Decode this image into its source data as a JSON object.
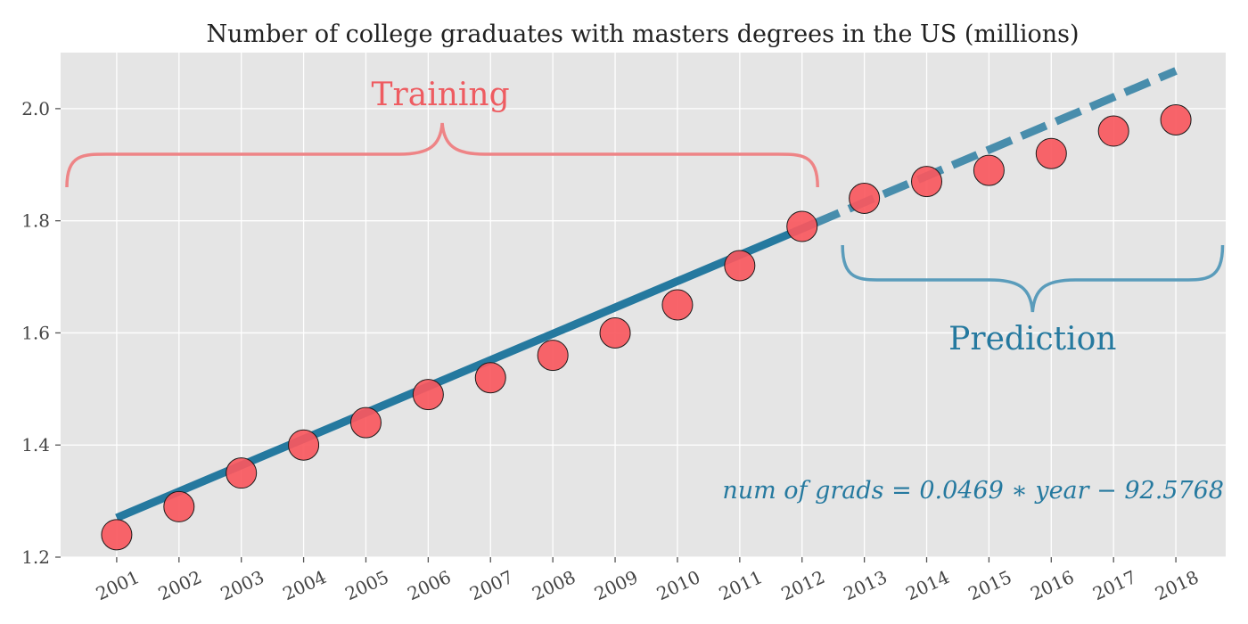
{
  "chart_data": {
    "type": "scatter",
    "title": "Number of college graduates with masters degrees in the US (millions)",
    "xlabel": "",
    "ylabel": "",
    "x": [
      2001,
      2002,
      2003,
      2004,
      2005,
      2006,
      2007,
      2008,
      2009,
      2010,
      2011,
      2012,
      2013,
      2014,
      2015,
      2016,
      2017,
      2018
    ],
    "x_tick_labels": [
      "2001",
      "2002",
      "2003",
      "2004",
      "2005",
      "2006",
      "2007",
      "2008",
      "2009",
      "2010",
      "2011",
      "2012",
      "2013",
      "2014",
      "2015",
      "2016",
      "2017",
      "2018"
    ],
    "y_ticks": [
      1.2,
      1.4,
      1.6,
      1.8,
      2.0
    ],
    "y_tick_labels": [
      "1.2",
      "1.4",
      "1.6",
      "1.8",
      "2.0"
    ],
    "ylim": [
      1.2,
      2.1
    ],
    "xlim": [
      2000.1,
      2018.8
    ],
    "grid": true,
    "series": [
      {
        "values": [
          1.24,
          1.29,
          1.35,
          1.4,
          1.44,
          1.49,
          1.52,
          1.56,
          1.6,
          1.65,
          1.72,
          1.79,
          1.84,
          1.87,
          1.89,
          1.92,
          1.96,
          1.98
        ]
      }
    ],
    "regression": {
      "slope": 0.0469,
      "intercept": -92.5768,
      "fit_range": [
        2001,
        2012.2
      ],
      "predict_range": [
        2012.2,
        2018
      ]
    },
    "annotations": {
      "training_label": "Training",
      "prediction_label": "Prediction",
      "equation": "num of grads = 0.0469 ∗ year − 92.5768",
      "training_span": [
        2000.2,
        2012.25
      ],
      "prediction_span": [
        2012.65,
        2018.75
      ]
    },
    "colors": {
      "point_fill": "#F8585E",
      "point_edge": "#1a1a1a",
      "line": "#25799F",
      "training_brace": "#EE8486",
      "training_text": "#EE5C61",
      "prediction_brace": "#5A9CBB",
      "prediction_text": "#25799F",
      "panel_bg": "#E5E5E5",
      "grid": "#FFFFFF"
    }
  }
}
